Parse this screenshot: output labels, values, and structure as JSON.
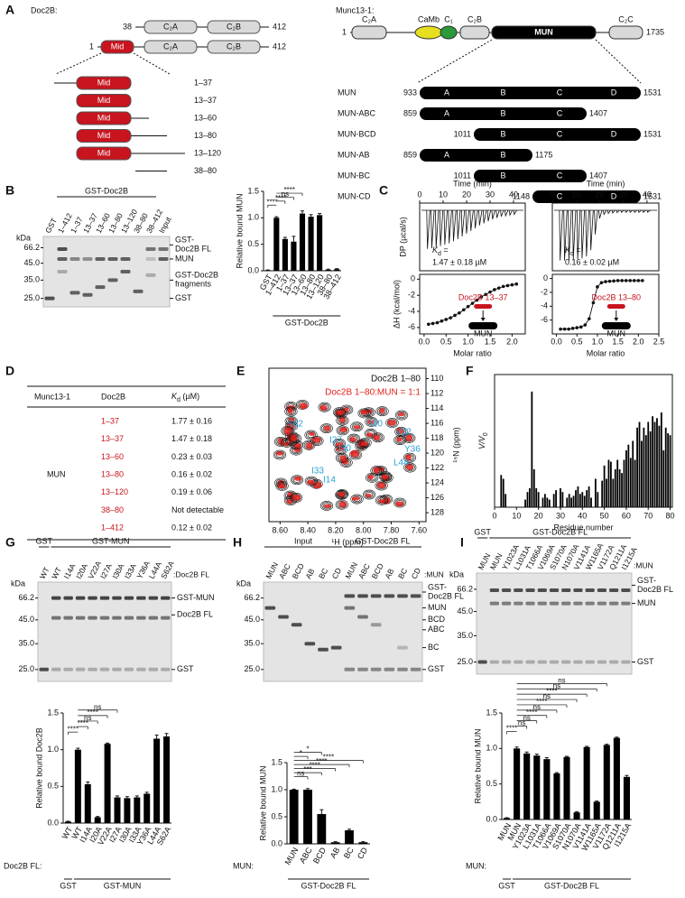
{
  "panel_letters": [
    "A",
    "B",
    "C",
    "D",
    "E",
    "F",
    "G",
    "H",
    "I"
  ],
  "A": {
    "doc2b_label": "Doc2B:",
    "doc2b_rows": [
      {
        "start": 38,
        "domains": [
          "C₂A",
          "C₂B"
        ],
        "end": 412
      },
      {
        "start": 1,
        "domains": [
          "Mid",
          "C₂A",
          "C₂B"
        ],
        "end": 412
      }
    ],
    "mid_label": "Mid",
    "constructs": [
      "1–37",
      "13–37",
      "13–60",
      "13–80",
      "13–120",
      "38–80"
    ],
    "munc_label": "Munc13-1:",
    "munc_row": {
      "start": 1,
      "domains": [
        "C₂A",
        "CaMb",
        "C₁",
        "C₂B",
        "MUN",
        "C₂C"
      ],
      "end": 1735
    },
    "munc_constructs": [
      {
        "name": "MUN",
        "start": 933,
        "subdomains": [
          "A",
          "B",
          "C",
          "D"
        ],
        "end": 1531
      },
      {
        "name": "MUN-ABC",
        "start": 859,
        "subdomains": [
          "A",
          "B",
          "C"
        ],
        "end": 1407
      },
      {
        "name": "MUN-BCD",
        "start": 1011,
        "subdomains": [
          "B",
          "C",
          "D"
        ],
        "end": 1531
      },
      {
        "name": "MUN-AB",
        "start": 859,
        "subdomains": [
          "A",
          "B"
        ],
        "end": 1175
      },
      {
        "name": "MUN-BC",
        "start": 1011,
        "subdomains": [
          "B",
          "C"
        ],
        "end": 1407
      },
      {
        "name": "MUN-CD",
        "start": 1148,
        "subdomains": [
          "C",
          "D"
        ],
        "end": 1531
      }
    ]
  },
  "B": {
    "gel": {
      "groups": [
        "GST-Doc2B"
      ],
      "kda": "kDa",
      "markers": [
        "66.2",
        "45.0",
        "35.0",
        "25.0"
      ],
      "lanes": [
        "GST",
        "1–412",
        "1–37",
        "13–37",
        "13–60",
        "13–80",
        "13–120",
        "38–80",
        "38–412",
        "Input"
      ],
      "right_labels": [
        [
          "GST-",
          "Doc2B FL"
        ],
        [
          "MUN"
        ],
        [
          "GST-Doc2B",
          "fragments"
        ],
        [
          "GST"
        ]
      ]
    },
    "chart": {
      "type": "bar",
      "ylabel": "Relative bound MUN",
      "group_label": "GST-Doc2B",
      "categories": [
        "GST",
        "1–412",
        "1–37",
        "13–37",
        "13–60",
        "13–80",
        "13–120",
        "38–80",
        "38–412"
      ],
      "values": [
        0.01,
        1.0,
        0.6,
        0.55,
        1.08,
        1.02,
        1.05,
        0.02,
        0.03
      ],
      "errors": [
        0.005,
        0.02,
        0.03,
        0.1,
        0.05,
        0.04,
        0.03,
        0.01,
        0.01
      ],
      "ylim": [
        0,
        1.5
      ],
      "yticks": [
        {
          "value": 0,
          "label": "0.0"
        },
        {
          "value": 0.5,
          "label": "0.5"
        },
        {
          "value": 1,
          "label": "1.0"
        },
        {
          "value": 1.5,
          "label": "1.5"
        }
      ],
      "significance": [
        "****",
        "****",
        "ns",
        "****"
      ]
    }
  },
  "C": [
    {
      "time_label": "Time (min)",
      "time_lim": [
        0,
        45
      ],
      "time_ticks": [
        0,
        10,
        20,
        30,
        40
      ],
      "dp_label": "DP (µcal/s)",
      "kd_symbol": "K",
      "kd_sub": "d",
      "kd_eq": " =",
      "kd_value": "1.47 ± 0.18 µM",
      "dh_label": "ΔH (kcal/mol)",
      "xlabel": "Molar ratio",
      "xlim": [
        -0.1,
        2.3
      ],
      "xticks": [
        {
          "value": 0,
          "label": "0.0"
        },
        {
          "value": 0.5,
          "label": "0.5"
        },
        {
          "value": 1,
          "label": "1.0"
        },
        {
          "value": 1.5,
          "label": "1.5"
        },
        {
          "value": 2,
          "label": "2.0"
        }
      ],
      "ylim": [
        -6.8,
        0.6
      ],
      "yticks": [
        0,
        -2,
        -4,
        -6
      ],
      "x": [
        0.1,
        0.2,
        0.3,
        0.4,
        0.5,
        0.6,
        0.7,
        0.8,
        0.9,
        1.0,
        1.1,
        1.2,
        1.3,
        1.4,
        1.5,
        1.6,
        1.7,
        1.8,
        1.9,
        2.0,
        2.1
      ],
      "values": [
        -5.6,
        -5.5,
        -5.4,
        -5.2,
        -5.0,
        -4.8,
        -4.5,
        -4.2,
        -3.8,
        -3.4,
        -3.0,
        -2.6,
        -2.2,
        -1.9,
        -1.6,
        -1.3,
        -1.1,
        -0.9,
        -0.8,
        -0.7,
        -0.6
      ],
      "ligand": "Doc2B 13–37",
      "target": "MUN"
    },
    {
      "time_label": "Time (min)",
      "time_lim": [
        0,
        45
      ],
      "time_ticks": [
        0,
        10,
        20,
        30,
        40
      ],
      "dp_label": "DP (µcal/s)",
      "kd_symbol": "K",
      "kd_sub": "d",
      "kd_eq": " =",
      "kd_value": "0.16 ± 0.02 µM",
      "dh_label": "ΔH (kcal/mol)",
      "xlabel": "Molar ratio",
      "xlim": [
        -0.1,
        2.5
      ],
      "xticks": [
        {
          "value": 0,
          "label": "0.0"
        },
        {
          "value": 0.5,
          "label": "0.5"
        },
        {
          "value": 1,
          "label": "1.0"
        },
        {
          "value": 1.5,
          "label": "1.5"
        },
        {
          "value": 2,
          "label": "2.0"
        },
        {
          "value": 2.5,
          "label": "2.5"
        }
      ],
      "ylim": [
        -8,
        0.6
      ],
      "yticks": [
        0,
        -2,
        -4,
        -6
      ],
      "x": [
        0.1,
        0.2,
        0.3,
        0.4,
        0.5,
        0.6,
        0.7,
        0.8,
        0.9,
        1.0,
        1.1,
        1.2,
        1.3,
        1.4,
        1.5,
        1.6,
        1.7,
        1.8,
        1.9,
        2.0,
        2.1
      ],
      "values": [
        -7.3,
        -7.3,
        -7.3,
        -7.2,
        -7.1,
        -7.0,
        -6.7,
        -5.8,
        -3.5,
        -1.2,
        -0.6,
        -0.45,
        -0.4,
        -0.35,
        -0.3,
        -0.3,
        -0.3,
        -0.3,
        -0.3,
        -0.3,
        -0.3
      ],
      "ligand": "Doc2B 13–80",
      "target": "MUN"
    }
  ],
  "D": {
    "headers": [
      "Munc13-1",
      "Doc2B"
    ],
    "kd_header": {
      "symbol": "K",
      "sub": "d",
      "unit": " (µM)"
    },
    "munc": "MUN",
    "rows": [
      {
        "doc2b": "1–37",
        "kd": "1.77 ± 0.16"
      },
      {
        "doc2b": "13–37",
        "kd": "1.47 ± 0.18"
      },
      {
        "doc2b": "13–60",
        "kd": "0.23 ± 0.03"
      },
      {
        "doc2b": "13–80",
        "kd": "0.16 ± 0.02"
      },
      {
        "doc2b": "13–120",
        "kd": "0.19 ± 0.06"
      },
      {
        "doc2b": "38–80",
        "kd": "Not detectable"
      },
      {
        "doc2b": "1–412",
        "kd": "0.12 ± 0.02"
      }
    ]
  },
  "E": {
    "legend": [
      {
        "name": "Doc2B 1–80",
        "color": "#111111"
      },
      {
        "name": "Doc2B 1–80:MUN = 1:1",
        "color": "#e0201b"
      }
    ],
    "xlabel": "¹H (ppm)",
    "ylabel": "¹⁵N (ppm)",
    "xlim": [
      8.68,
      7.55
    ],
    "xticks": [
      {
        "value": 8.6,
        "label": "8.60"
      },
      {
        "value": 8.4,
        "label": "8.40"
      },
      {
        "value": 8.2,
        "label": "8.20"
      },
      {
        "value": 8.0,
        "label": "8.00"
      },
      {
        "value": 7.8,
        "label": "7.80"
      },
      {
        "value": 7.6,
        "label": "7.60"
      }
    ],
    "ylim": [
      108.6,
      129.2
    ],
    "yticks": [
      110,
      112,
      114,
      116,
      118,
      120,
      122,
      124,
      126,
      128
    ],
    "residue_labels": [
      "S62",
      "I20",
      "V22",
      "I27",
      "I30",
      "Y36",
      "L44",
      "I33",
      "I14"
    ],
    "residue_color": "#2a9fd6"
  },
  "F": {
    "type": "bar",
    "ylabel": "V/V",
    "ylabel_sub": "0",
    "xlabel": "Residue number",
    "xlim": [
      0,
      81
    ],
    "xticks": [
      0,
      10,
      20,
      30,
      40,
      50,
      60,
      70,
      80
    ],
    "ylim": [
      0,
      0.7
    ],
    "x": [
      3,
      4,
      5,
      14,
      15,
      16,
      17,
      18,
      19,
      20,
      22,
      23,
      24,
      25,
      27,
      28,
      30,
      31,
      33,
      34,
      35,
      36,
      37,
      38,
      39,
      40,
      41,
      42,
      43,
      44,
      46,
      47,
      49,
      50,
      51,
      52,
      53,
      54,
      55,
      56,
      57,
      58,
      59,
      60,
      61,
      62,
      63,
      64,
      65,
      66,
      67,
      68,
      69,
      70,
      71,
      72,
      73,
      74,
      75,
      76,
      77,
      78,
      79,
      80
    ],
    "values": [
      0.17,
      0.15,
      0.07,
      0.04,
      0.08,
      0.1,
      0.61,
      0.2,
      0.1,
      0.08,
      0.05,
      0.07,
      0.05,
      0.04,
      0.07,
      0.09,
      0.1,
      0.08,
      0.05,
      0.07,
      0.05,
      0.06,
      0.09,
      0.11,
      0.07,
      0.08,
      0.06,
      0.09,
      0.11,
      0.05,
      0.15,
      0.08,
      0.14,
      0.22,
      0.15,
      0.25,
      0.24,
      0.15,
      0.2,
      0.25,
      0.2,
      0.18,
      0.25,
      0.3,
      0.33,
      0.26,
      0.35,
      0.25,
      0.42,
      0.45,
      0.35,
      0.42,
      0.38,
      0.45,
      0.4,
      0.48,
      0.45,
      0.47,
      0.43,
      0.5,
      0.3,
      0.42,
      0.39,
      0.38
    ]
  },
  "G": {
    "gel": {
      "groups": [
        "GST",
        "GST-MUN"
      ],
      "kda": "kDa",
      "markers": [
        "66.2",
        "45.0",
        "35.0",
        "25.0"
      ],
      "lane_suffix": ":Doc2B FL",
      "lanes": [
        "WT",
        "WT",
        "I14A",
        "I20A",
        "V22A",
        "I27A",
        "I30A",
        "I33A",
        "Y36A",
        "L44A",
        "S62A"
      ],
      "right_labels": [
        [
          "GST-MUN"
        ],
        [
          "Doc2B FL"
        ],
        [
          "GST"
        ]
      ]
    },
    "chart": {
      "type": "bar",
      "ylabel": "Relative bound Doc2B",
      "row_label": "Doc2B FL:",
      "groups": [
        "GST",
        "GST-MUN"
      ],
      "categories": [
        "WT",
        "WT",
        "I14A",
        "I20A",
        "V22A",
        "I27A",
        "I30A",
        "I33A",
        "Y36A",
        "L44A",
        "S62A"
      ],
      "values": [
        0.02,
        1.0,
        0.53,
        0.08,
        1.08,
        0.35,
        0.34,
        0.35,
        0.4,
        1.15,
        1.18
      ],
      "errors": [
        0.005,
        0.02,
        0.03,
        0.01,
        0.01,
        0.02,
        0.02,
        0.02,
        0.02,
        0.05,
        0.04
      ],
      "ylim": [
        0,
        1.5
      ],
      "yticks": [
        {
          "value": 0,
          "label": "0.0"
        },
        {
          "value": 0.5,
          "label": "0.5"
        },
        {
          "value": 1,
          "label": "1.0"
        },
        {
          "value": 1.5,
          "label": "1.5"
        }
      ],
      "significance": [
        "****",
        "****",
        "ns",
        "****",
        "ns"
      ]
    }
  },
  "H": {
    "gel": {
      "groups": [
        "Input",
        "GST-Doc2B FL"
      ],
      "kda": "kDa",
      "markers": [
        "66.2",
        "45.0",
        "35.0",
        "25.0"
      ],
      "lane_suffix": ":MUN",
      "lanes": [
        "MUN",
        "ABC",
        "BCD",
        "AB",
        "BC",
        "CD",
        "MUN",
        "ABC",
        "BCD",
        "AB",
        "BC",
        "CD"
      ],
      "right_labels": [
        [
          "GST-",
          "Doc2B FL"
        ],
        [
          "MUN"
        ],
        [
          "BCD"
        ],
        [
          "ABC"
        ],
        [
          "BC"
        ],
        [
          "GST"
        ]
      ]
    },
    "chart": {
      "type": "bar",
      "ylabel": "Relative bound MUN",
      "row_label": "MUN:",
      "groups": [
        "GST-Doc2B FL"
      ],
      "categories": [
        "MUN",
        "ABC",
        "BCD",
        "AB",
        "BC",
        "CD"
      ],
      "values": [
        1.0,
        1.0,
        0.55,
        0.03,
        0.25,
        0.03
      ],
      "errors": [
        0.01,
        0.02,
        0.08,
        0.01,
        0.02,
        0.01
      ],
      "ylim": [
        0,
        1.5
      ],
      "yticks": [
        {
          "value": 0,
          "label": "0.0"
        },
        {
          "value": 0.5,
          "label": "0.5"
        },
        {
          "value": 1,
          "label": "1.0"
        },
        {
          "value": 1.5,
          "label": "1.5"
        }
      ],
      "significance": [
        "ns",
        "***",
        "****",
        "****",
        "****",
        "*",
        "*"
      ]
    }
  },
  "I": {
    "gel": {
      "groups": [
        "GST",
        "GST-Doc2B FL"
      ],
      "kda": "kDa",
      "markers": [
        "66.2",
        "45.0",
        "35.0",
        "25.0"
      ],
      "lane_suffix": ":MUN",
      "lanes": [
        "MUN",
        "MUN",
        "Y1023A",
        "L1031A",
        "T1066A",
        "V1069A",
        "S1070A",
        "N1070A",
        "V1141A",
        "W1165A",
        "V1172A",
        "Q1211A",
        "I1215A"
      ],
      "right_labels": [
        [
          "GST-",
          "Doc2B FL"
        ],
        [
          "MUN"
        ],
        [
          "GST"
        ]
      ]
    },
    "chart": {
      "type": "bar",
      "ylabel": "Relative bound MUN",
      "row_label": "MUN:",
      "groups": [
        "GST",
        "GST-Doc2B FL"
      ],
      "categories": [
        "MUN",
        "MUN",
        "Y1023A",
        "L1031A",
        "T1066A",
        "V1069A",
        "S1070A",
        "N1070A",
        "V1141A",
        "W1165A",
        "V1172A",
        "Q1211A",
        "I1215A"
      ],
      "values": [
        0.02,
        1.0,
        0.93,
        0.9,
        0.85,
        0.65,
        0.88,
        0.1,
        1.02,
        0.25,
        1.05,
        1.15,
        0.6
      ],
      "errors": [
        0.005,
        0.02,
        0.02,
        0.02,
        0.02,
        0.01,
        0.01,
        0.01,
        0.01,
        0.01,
        0.01,
        0.01,
        0.02
      ],
      "ylim": [
        0,
        1.5
      ],
      "yticks": [
        {
          "value": 0,
          "label": "0.0"
        },
        {
          "value": 0.5,
          "label": "0.5"
        },
        {
          "value": 1,
          "label": "1.0"
        },
        {
          "value": 1.5,
          "label": "1.5"
        }
      ],
      "significance": [
        "****",
        "ns",
        "ns",
        "****",
        "ns",
        "****",
        "ns",
        "****",
        "ns",
        "ns"
      ]
    }
  }
}
